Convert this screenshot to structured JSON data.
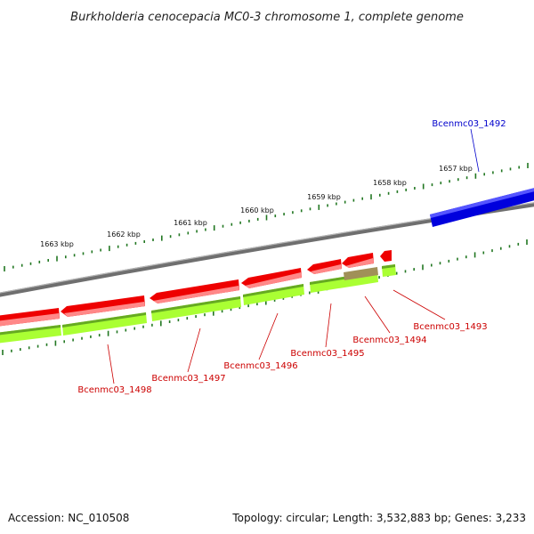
{
  "title": "Burkholderia cenocepacia MC0-3 chromosome 1, complete genome",
  "footer": {
    "accession": "Accession: NC_010508",
    "summary": "Topology: circular; Length: 3,532,883 bp; Genes: 3,233"
  },
  "colors": {
    "forward_gene": "#0000dd",
    "reverse_gene": "#ee0000",
    "reverse_gene_highlight": "#ff8888",
    "cds_feature": "#aaff33",
    "cds_feature_dark": "#66aa22",
    "backbone": "#808080",
    "ticks": "#227722",
    "forward_label": "#0000cc",
    "reverse_label": "#cc0000"
  },
  "tick_labels": [
    "1663 kbp",
    "1662 kbp",
    "1661 kbp",
    "1660 kbp",
    "1659 kbp",
    "1658 kbp",
    "1657 kbp"
  ],
  "genes": [
    {
      "name": "Bcenmc03_1492",
      "strand": "forward"
    },
    {
      "name": "Bcenmc03_1493",
      "strand": "reverse"
    },
    {
      "name": "Bcenmc03_1494",
      "strand": "reverse"
    },
    {
      "name": "Bcenmc03_1495",
      "strand": "reverse"
    },
    {
      "name": "Bcenmc03_1496",
      "strand": "reverse"
    },
    {
      "name": "Bcenmc03_1497",
      "strand": "reverse"
    },
    {
      "name": "Bcenmc03_1498",
      "strand": "reverse"
    }
  ]
}
